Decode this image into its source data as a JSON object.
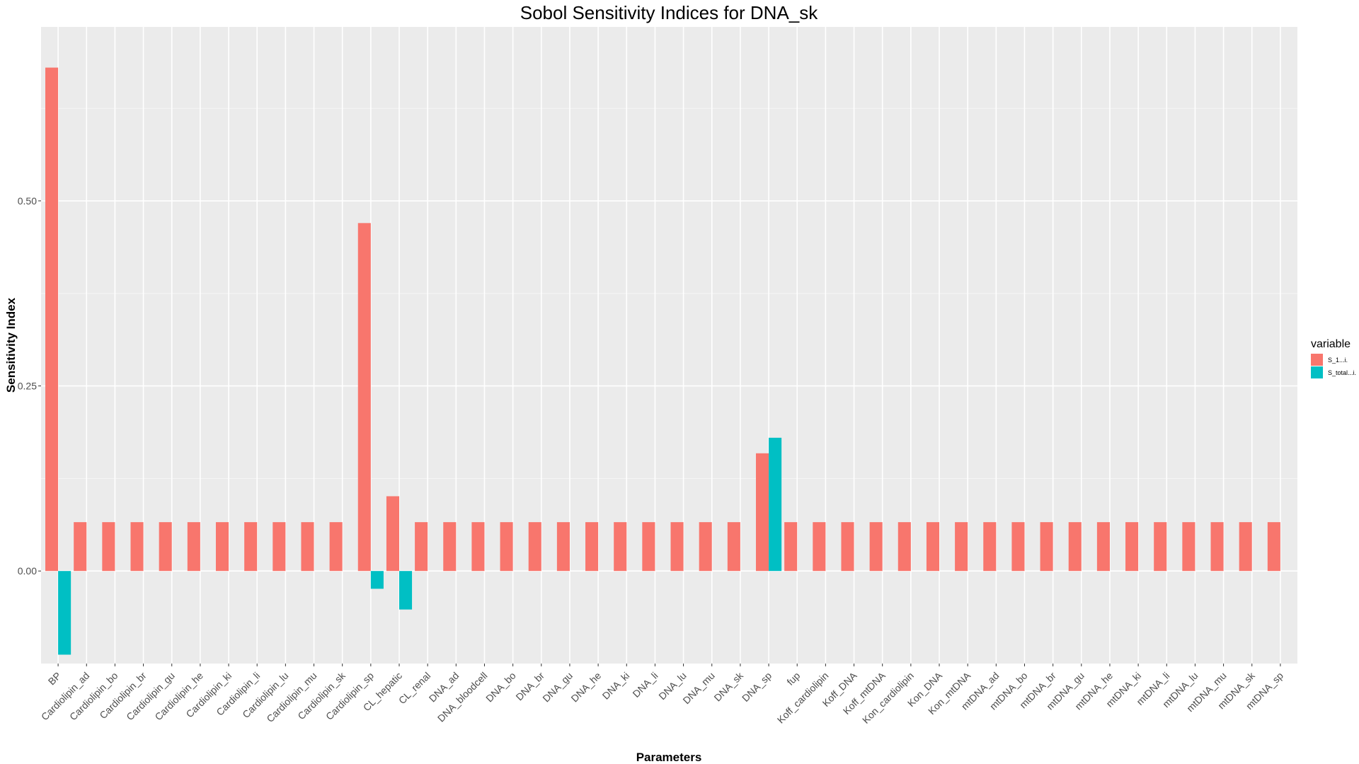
{
  "chart_data": {
    "type": "bar",
    "title": "Sobol Sensitivity Indices for DNA_sk",
    "xlabel": "Parameters",
    "ylabel": "Sensitivity Index",
    "ylim": [
      -0.125,
      0.735
    ],
    "yticks": [
      0.0,
      0.25,
      0.5
    ],
    "ytick_labels": [
      "0.00",
      "0.25",
      "0.50"
    ],
    "grid": true,
    "legend": {
      "title": "variable",
      "position": "right"
    },
    "categories": [
      "BP",
      "Cardiolipin_ad",
      "Cardiolipin_bo",
      "Cardiolipin_br",
      "Cardiolipin_gu",
      "Cardiolipin_he",
      "Cardiolipin_ki",
      "Cardiolipin_li",
      "Cardiolipin_lu",
      "Cardiolipin_mu",
      "Cardiolipin_sk",
      "Cardiolipin_sp",
      "CL_hepatic",
      "CL_renal",
      "DNA_ad",
      "DNA_bloodcell",
      "DNA_bo",
      "DNA_br",
      "DNA_gu",
      "DNA_he",
      "DNA_ki",
      "DNA_li",
      "DNA_lu",
      "DNA_mu",
      "DNA_sk",
      "DNA_sp",
      "fup",
      "Koff_cardiolipin",
      "Koff_DNA",
      "Koff_mtDNA",
      "Kon_cardiolipin",
      "Kon_DNA",
      "Kon_mtDNA",
      "mtDNA_ad",
      "mtDNA_bo",
      "mtDNA_br",
      "mtDNA_gu",
      "mtDNA_he",
      "mtDNA_ki",
      "mtDNA_li",
      "mtDNA_lu",
      "mtDNA_mu",
      "mtDNA_sk",
      "mtDNA_sp"
    ],
    "series": [
      {
        "name": "S_1...i.",
        "color": "#F8766D",
        "values": [
          0.68,
          0.066,
          0.066,
          0.066,
          0.066,
          0.066,
          0.066,
          0.066,
          0.066,
          0.066,
          0.066,
          0.47,
          0.101,
          0.066,
          0.066,
          0.066,
          0.066,
          0.066,
          0.066,
          0.066,
          0.066,
          0.066,
          0.066,
          0.066,
          0.066,
          0.159,
          0.066,
          0.066,
          0.066,
          0.066,
          0.066,
          0.066,
          0.066,
          0.066,
          0.066,
          0.066,
          0.066,
          0.066,
          0.066,
          0.066,
          0.066,
          0.066,
          0.066,
          0.066
        ]
      },
      {
        "name": "S_total...i.",
        "color": "#00BFC4",
        "values": [
          -0.113,
          null,
          null,
          null,
          null,
          null,
          null,
          null,
          null,
          null,
          null,
          -0.024,
          -0.052,
          null,
          null,
          null,
          null,
          null,
          null,
          null,
          null,
          null,
          null,
          null,
          null,
          0.18,
          null,
          null,
          null,
          null,
          null,
          null,
          null,
          null,
          null,
          null,
          null,
          null,
          null,
          null,
          null,
          null,
          null,
          null
        ]
      }
    ]
  }
}
